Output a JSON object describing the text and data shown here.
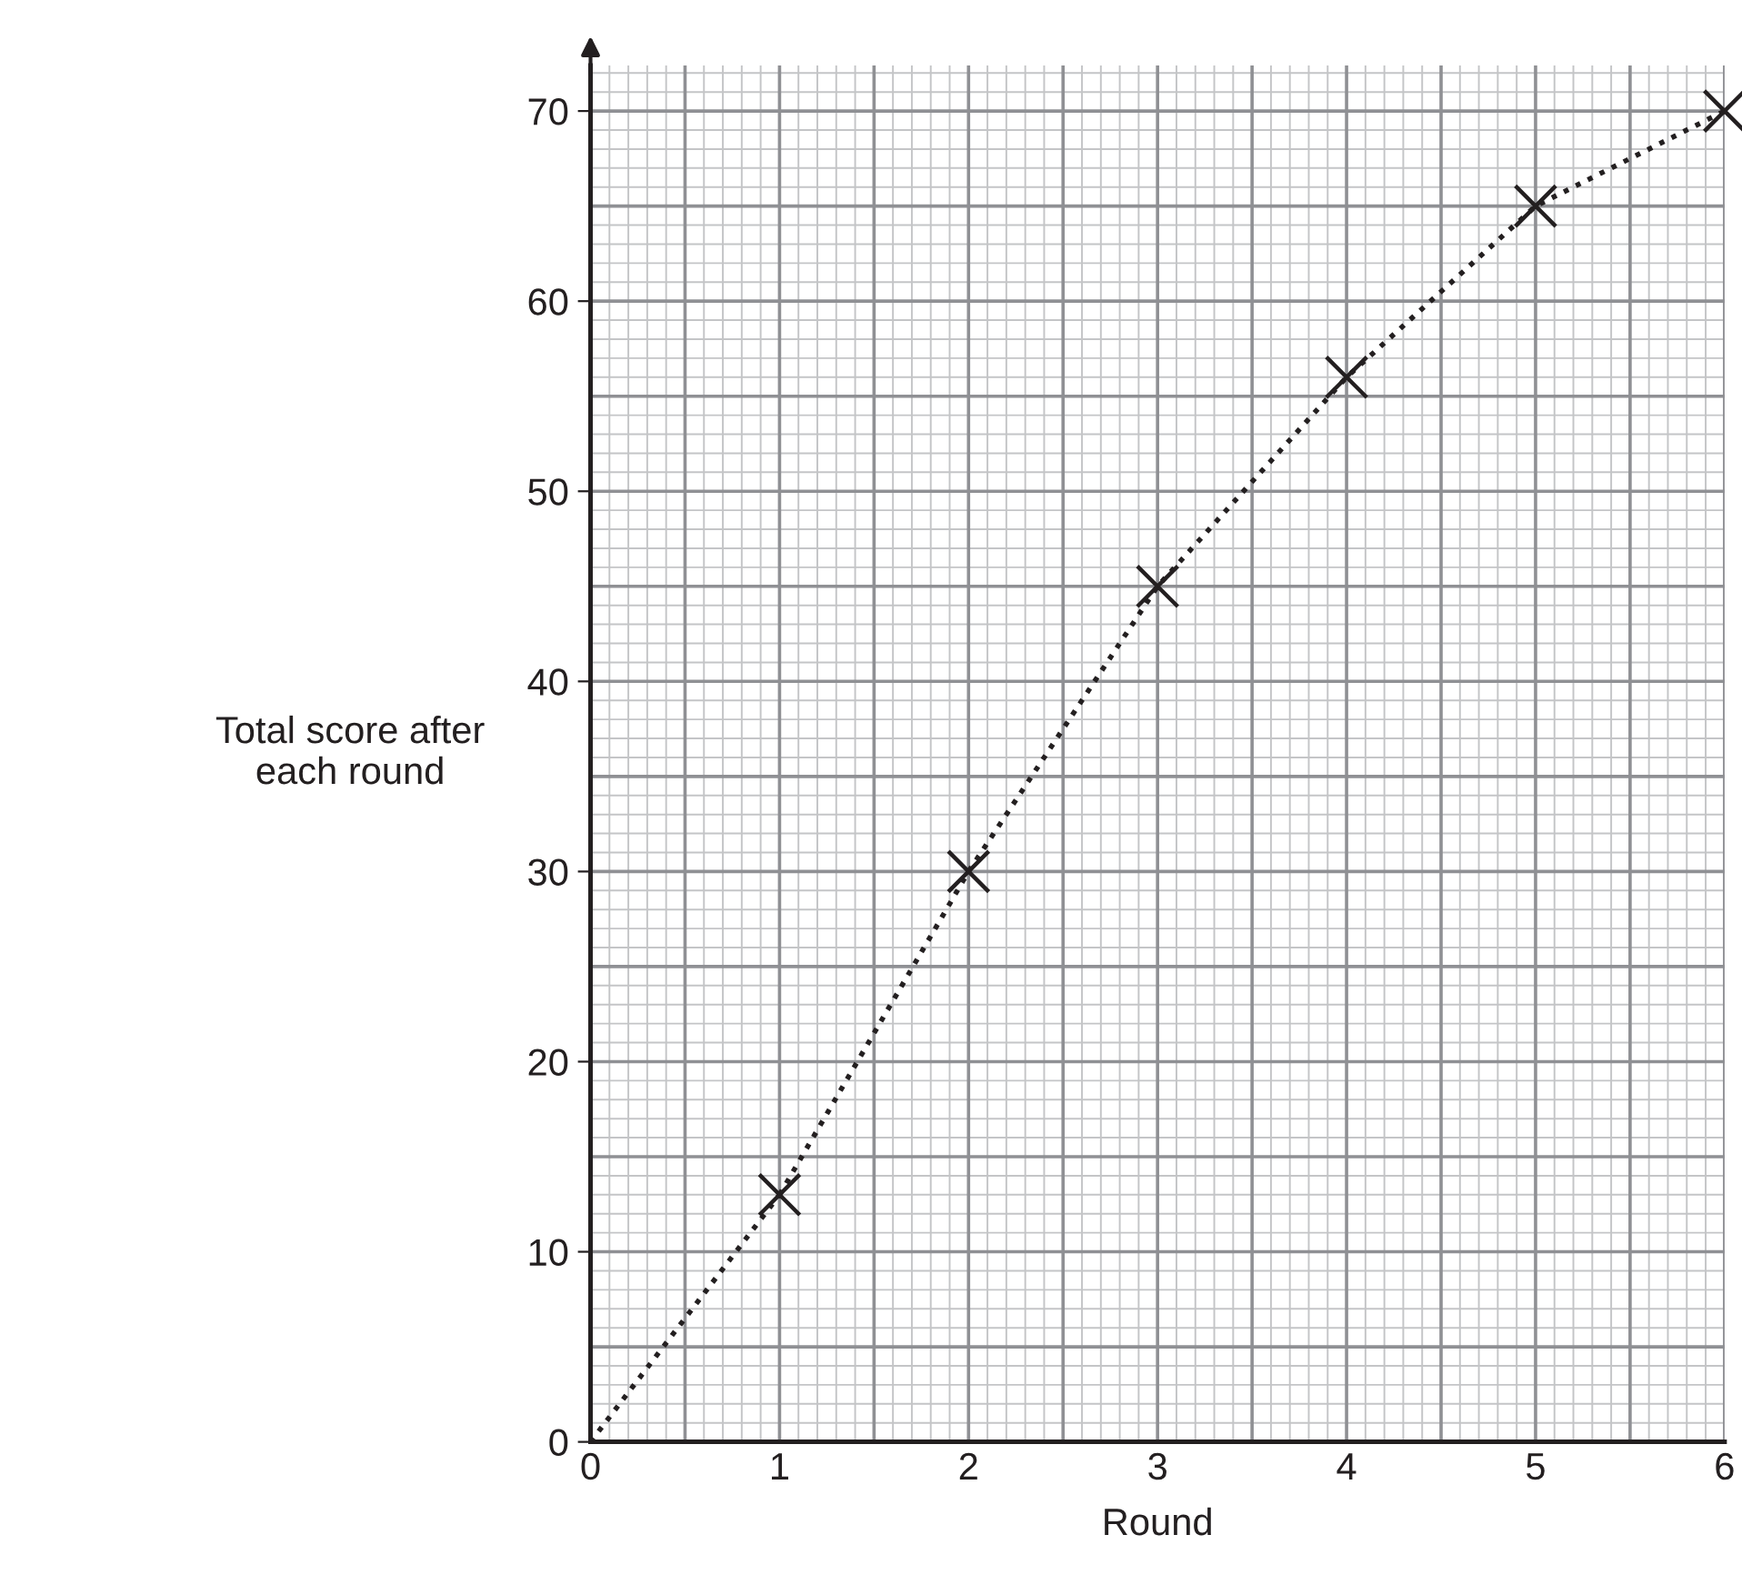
{
  "chart_data": {
    "type": "line",
    "xlabel": "Round",
    "ylabel": "Total score after\neach round",
    "xlim": [
      0,
      6
    ],
    "ylim": [
      0,
      72.4
    ],
    "xticks": [
      0,
      1,
      2,
      3,
      4,
      5,
      6
    ],
    "yticks": [
      0,
      10,
      20,
      30,
      40,
      50,
      60,
      70
    ],
    "grid": true,
    "series": [
      {
        "x": [
          1,
          2,
          3,
          4,
          5,
          6
        ],
        "values": [
          13,
          30,
          45,
          56,
          65,
          70
        ],
        "color": "#231f20",
        "line_style": "dotted",
        "marker": "cross"
      },
      {
        "type": "line",
        "x": [
          0,
          1
        ],
        "values": [
          0,
          13
        ],
        "color": "#231f20",
        "line_style": "dotted"
      }
    ]
  }
}
